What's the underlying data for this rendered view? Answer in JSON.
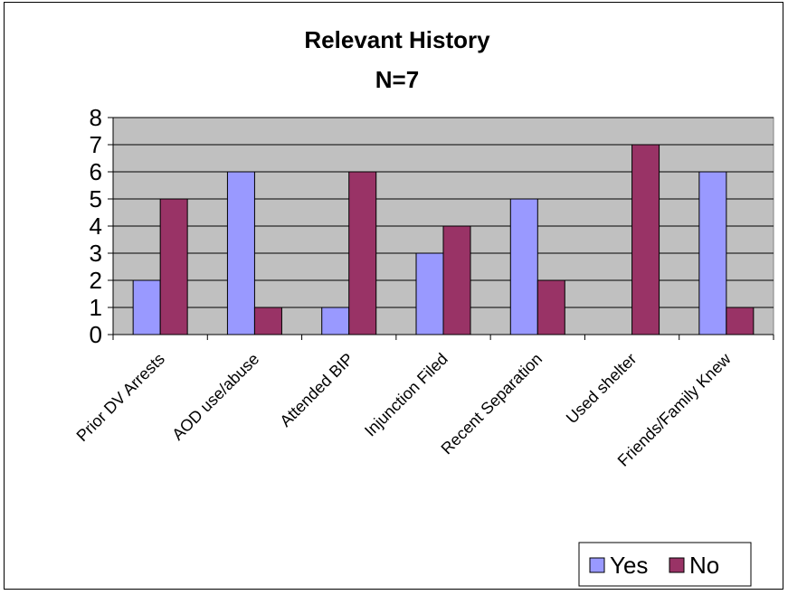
{
  "chart_data": {
    "type": "bar",
    "title": "Relevant History",
    "subtitle": "N=7",
    "categories": [
      "Prior DV Arrests",
      "AOD use/abuse",
      "Attended BIP",
      "Injunction Filed",
      "Recent Separation",
      "Used shelter",
      "Friends/Family Knew"
    ],
    "series": [
      {
        "name": "Yes",
        "color": "#9999ff",
        "values": [
          2,
          6,
          1,
          3,
          5,
          0,
          6
        ]
      },
      {
        "name": "No",
        "color": "#993366",
        "values": [
          5,
          1,
          6,
          4,
          2,
          7,
          1
        ]
      }
    ],
    "ylim": [
      0,
      8
    ],
    "yticks": [
      "0",
      "1",
      "2",
      "3",
      "4",
      "5",
      "6",
      "7",
      "8"
    ],
    "grid": true,
    "plot_background": "#c0c0c0",
    "legend_position": "bottom-right"
  }
}
